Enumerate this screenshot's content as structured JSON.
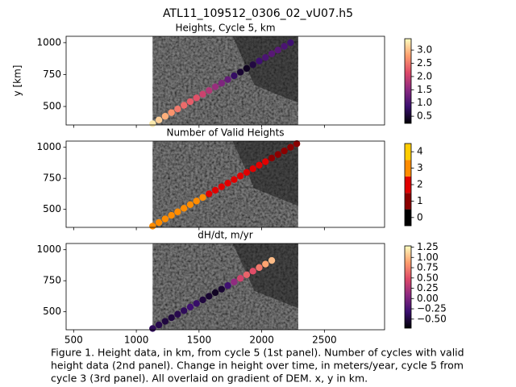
{
  "title": "ATL11_109512_0306_02_vU07.h5",
  "caption": [
    "Figure 1. Height data, in km, from cycle 5 (1st panel). Number of cycles with valid",
    "height data (2nd panel). Change in height over time, in meters/year, cycle 5 from",
    "cycle 3 (3rd panel). All overlaid on gradient of DEM. x, y in km."
  ],
  "chart_data": [
    {
      "type": "scatter",
      "title": "Heights, Cycle 5, km",
      "ylabel": "y [km]",
      "xlim": [
        440,
        2980
      ],
      "xticks": [
        500,
        1000,
        1500,
        2000,
        2500
      ],
      "ylim": [
        355,
        1050
      ],
      "yticks": [
        500,
        750,
        1000
      ],
      "x": [
        1130,
        1180,
        1230,
        1280,
        1330,
        1380,
        1430,
        1480,
        1530,
        1580,
        1630,
        1680,
        1730,
        1780,
        1830,
        1880,
        1930,
        1980,
        2030,
        2080,
        2130,
        2180,
        2230
      ],
      "y": [
        365,
        394,
        423,
        452,
        480,
        509,
        538,
        567,
        596,
        625,
        654,
        682,
        711,
        740,
        769,
        798,
        827,
        856,
        884,
        913,
        942,
        971,
        1000
      ],
      "values": [
        3.3,
        3.1,
        2.9,
        2.7,
        2.5,
        2.4,
        2.3,
        2.2,
        2.0,
        1.8,
        1.6,
        1.4,
        1.2,
        0.8,
        0.5,
        0.4,
        0.6,
        0.9,
        1.0,
        1.1,
        1.1,
        1.0,
        0.9
      ],
      "colormap": "magma",
      "clim": [
        0.23,
        3.43
      ],
      "cticks": [
        0.5,
        {
          "value": 1,
          "label": "1.0"
        },
        1.5,
        {
          "value": 2,
          "label": "2.0"
        },
        2.5,
        {
          "value": 3,
          "label": "3.0"
        }
      ]
    },
    {
      "type": "scatter",
      "title": "Number of Valid Heights",
      "xlim": [
        440,
        2980
      ],
      "xticks": [
        500,
        1000,
        1500,
        2000,
        2500
      ],
      "ylim": [
        355,
        1050
      ],
      "yticks": [
        500,
        750,
        1000
      ],
      "x": [
        1130,
        1180,
        1230,
        1280,
        1330,
        1380,
        1430,
        1480,
        1530,
        1580,
        1630,
        1680,
        1730,
        1780,
        1830,
        1880,
        1930,
        1980,
        2030,
        2080,
        2130,
        2180,
        2230,
        2280
      ],
      "y": [
        365,
        394,
        423,
        452,
        480,
        509,
        538,
        567,
        596,
        625,
        654,
        682,
        711,
        740,
        769,
        798,
        827,
        856,
        884,
        913,
        942,
        971,
        1000,
        1029
      ],
      "values": [
        3,
        3,
        3,
        3,
        3,
        3,
        3,
        3,
        3,
        2,
        2,
        2,
        2,
        2,
        2,
        2,
        2,
        2,
        2,
        1,
        1,
        1,
        1,
        1
      ],
      "colormap": "discrete",
      "colors": [
        "#000000",
        "#8b0000",
        "#e00000",
        "#ff8c00",
        "#ffcc00"
      ],
      "clim": [
        -0.5,
        4.5
      ],
      "cticks": [
        0,
        1,
        2,
        3,
        4
      ]
    },
    {
      "type": "scatter",
      "title": "dH/dt, m/yr",
      "xlim": [
        440,
        2980
      ],
      "xticks": [
        500,
        1000,
        1500,
        2000,
        2500
      ],
      "ylim": [
        355,
        1050
      ],
      "yticks": [
        500,
        750,
        1000
      ],
      "x": [
        1130,
        1180,
        1230,
        1280,
        1330,
        1380,
        1430,
        1480,
        1530,
        1580,
        1630,
        1680,
        1730,
        1780,
        1830,
        1880,
        1930,
        1980,
        2030,
        2080
      ],
      "y": [
        365,
        394,
        423,
        452,
        480,
        509,
        538,
        567,
        596,
        625,
        654,
        682,
        711,
        740,
        769,
        798,
        827,
        856,
        884,
        913
      ],
      "values": [
        -0.4,
        -0.45,
        -0.5,
        -0.5,
        -0.45,
        -0.4,
        -0.3,
        -0.35,
        -0.5,
        -0.55,
        -0.6,
        -0.55,
        -0.3,
        0.1,
        0.4,
        0.6,
        0.5,
        0.7,
        0.9,
        1.0
      ],
      "colormap": "magma",
      "clim": [
        -0.72,
        1.28
      ],
      "cticks": [
        {
          "value": -0.5,
          "label": "−0.50"
        },
        {
          "value": -0.25,
          "label": "−0.25"
        },
        {
          "value": 0,
          "label": "0.00"
        },
        0.25,
        {
          "value": 0.5,
          "label": "0.50"
        },
        0.75,
        {
          "value": 1,
          "label": "1.00"
        },
        1.25
      ],
      "show_xticklabels": true
    }
  ]
}
